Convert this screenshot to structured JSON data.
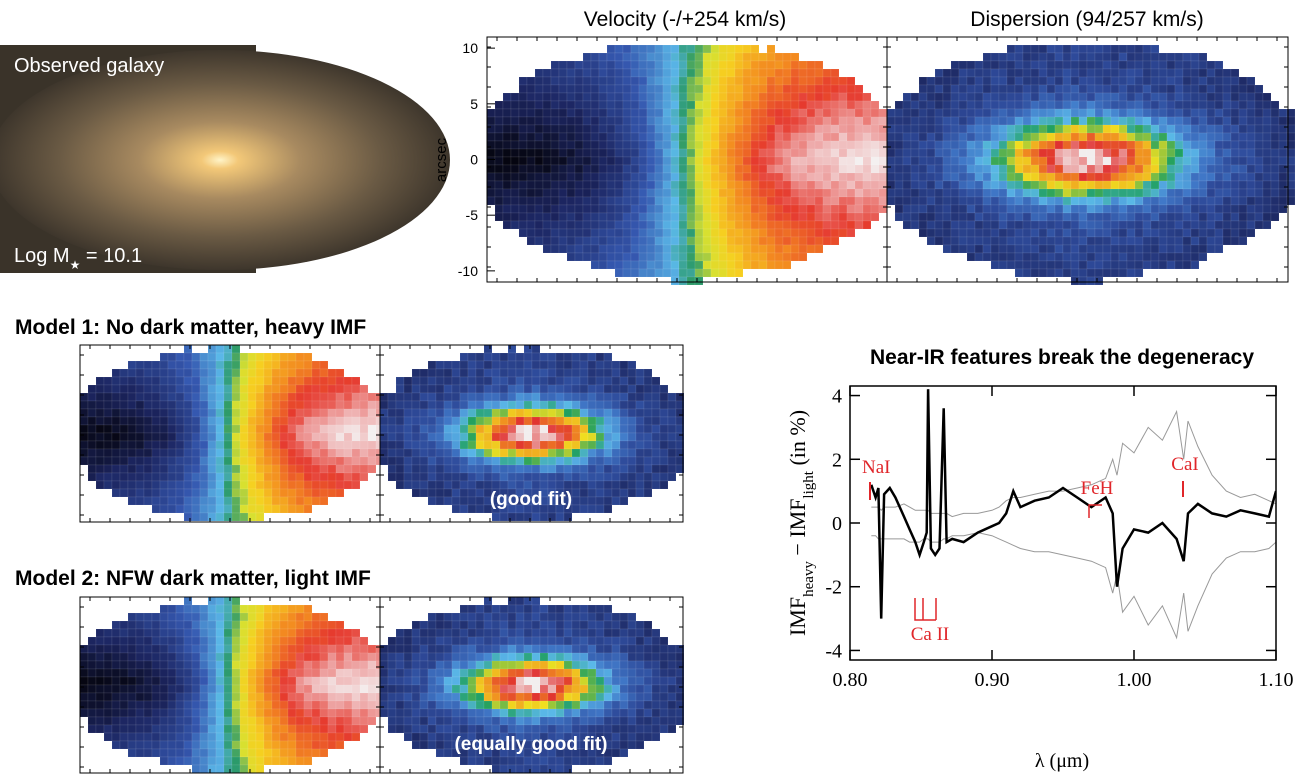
{
  "panels": {
    "galaxy": {
      "label": "Observed galaxy",
      "mass_parts": [
        "Log M",
        "★",
        " = 10.1"
      ]
    },
    "model1": {
      "title": "Model 1: No dark matter, heavy IMF",
      "note": "(good fit)"
    },
    "model2": {
      "title": "Model 2: NFW dark matter, light IMF",
      "note": "(equally good fit)"
    }
  },
  "chart_data": [
    {
      "type": "map",
      "title": "Velocity (-/+254 km/s)",
      "ylabel": "arcsec",
      "ylim": [
        -11,
        11
      ],
      "yticks": [
        -10,
        -5,
        0,
        5,
        10
      ]
    },
    {
      "type": "map",
      "title": "Dispersion (94/257 km/s)"
    },
    {
      "type": "line",
      "title": "Near-IR features break the degeneracy",
      "xlabel": "λ (μm)",
      "ylabel_parts": [
        "IMF",
        "heavy",
        " − IMF",
        "light",
        " (in %)"
      ],
      "x": [
        0.815,
        0.818,
        0.82,
        0.822,
        0.824,
        0.828,
        0.832,
        0.838,
        0.842,
        0.846,
        0.849,
        0.852,
        0.854,
        0.855,
        0.857,
        0.86,
        0.863,
        0.866,
        0.868,
        0.872,
        0.88,
        0.89,
        0.9,
        0.905,
        0.91,
        0.915,
        0.92,
        0.93,
        0.94,
        0.95,
        0.96,
        0.97,
        0.98,
        0.985,
        0.988,
        0.992,
        1.0,
        1.01,
        1.02,
        1.03,
        1.035,
        1.038,
        1.045,
        1.055,
        1.065,
        1.075,
        1.085,
        1.095,
        1.1
      ],
      "series": [
        {
          "color": "#999999",
          "values": [
            0.5,
            0.5,
            0.5,
            0.4,
            0.5,
            0.5,
            0.5,
            0.6,
            0.5,
            0.4,
            0.4,
            0.4,
            0.4,
            0.4,
            0.3,
            0.3,
            0.3,
            0.3,
            0.3,
            0.2,
            0.3,
            0.3,
            0.4,
            0.5,
            0.7,
            0.8,
            0.8,
            0.9,
            1.0,
            1.0,
            1.1,
            1.2,
            1.4,
            2.0,
            1.5,
            2.5,
            2.2,
            3.0,
            2.6,
            3.5,
            2.0,
            3.2,
            2.4,
            1.5,
            1.0,
            0.8,
            0.9,
            0.7,
            0.6
          ]
        },
        {
          "color": "#999999",
          "values": [
            -0.4,
            -0.4,
            -0.5,
            -0.5,
            -0.5,
            -0.5,
            -0.5,
            -0.5,
            -0.6,
            -0.6,
            -0.6,
            -0.5,
            -0.5,
            -0.5,
            -0.6,
            -0.6,
            -0.6,
            -0.5,
            -0.5,
            -0.4,
            -0.4,
            -0.3,
            -0.4,
            -0.5,
            -0.6,
            -0.7,
            -0.8,
            -0.9,
            -0.9,
            -1.0,
            -1.1,
            -1.2,
            -1.4,
            -2.2,
            -1.6,
            -2.8,
            -2.3,
            -3.2,
            -2.6,
            -3.6,
            -2.2,
            -3.4,
            -2.6,
            -1.6,
            -1.1,
            -0.9,
            -0.9,
            -0.8,
            -0.6
          ]
        },
        {
          "color": "#000000",
          "values": [
            1.2,
            0.8,
            1.1,
            -3.0,
            0.9,
            1.1,
            0.8,
            0.2,
            -0.2,
            -0.6,
            -1.0,
            -0.6,
            -0.3,
            4.2,
            -0.8,
            -1.0,
            -0.8,
            3.6,
            -0.6,
            -0.5,
            -0.6,
            -0.3,
            -0.1,
            0.0,
            0.3,
            1.0,
            0.5,
            0.7,
            0.8,
            1.1,
            0.8,
            0.5,
            0.8,
            0.3,
            -2.0,
            -0.8,
            -0.2,
            -0.3,
            0.0,
            -0.5,
            -1.2,
            0.3,
            0.6,
            0.3,
            0.2,
            0.4,
            0.3,
            0.2,
            1.0
          ]
        }
      ],
      "xlim": [
        0.8,
        1.1
      ],
      "xticks": [
        {
          "value": 0.8,
          "label": "0.80"
        },
        {
          "value": 0.9,
          "label": "0.90"
        },
        {
          "value": 1.0,
          "label": "1.00"
        },
        {
          "value": 1.1,
          "label": "1.10"
        }
      ],
      "ylim": [
        -4.3,
        4.3
      ],
      "yticks": [
        -4,
        -2,
        0,
        2,
        4
      ],
      "annotations": [
        "NaI",
        "Ca II",
        "FeH",
        "CaI"
      ]
    }
  ]
}
